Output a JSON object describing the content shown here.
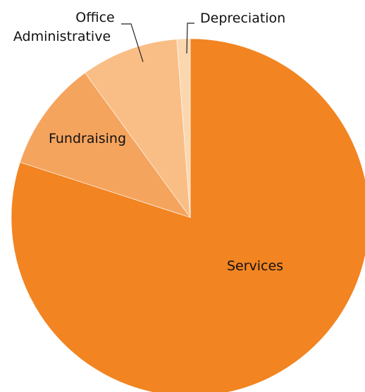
{
  "chart_data": {
    "type": "pie",
    "slices": [
      {
        "label": "Services",
        "value": 80.0,
        "color": "#F28422"
      },
      {
        "label": "Fundraising",
        "value": 10.0,
        "color": "#F5A45E"
      },
      {
        "label": "Office Administrative",
        "value": 8.8,
        "color": "#F9BE85"
      },
      {
        "label": "Depreciation",
        "value": 1.2,
        "color": "#FBD7B0"
      }
    ],
    "start": "12 o'clock, clockwise",
    "legend": "none (labels on/next to slices)"
  },
  "labels": {
    "services": "Services",
    "fundraising": "Fundraising",
    "office_line1": "Office",
    "office_line2": "Administrative",
    "depreciation": "Depreciation"
  }
}
